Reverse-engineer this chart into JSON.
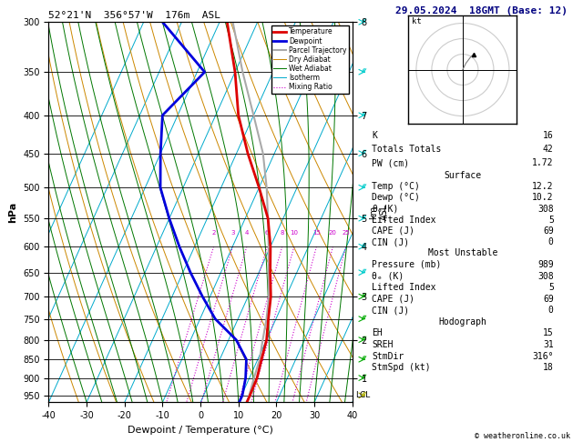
{
  "title_left": "52°21'N  356°57'W  176m  ASL",
  "title_right": "29.05.2024  18GMT (Base: 12)",
  "xlabel": "Dewpoint / Temperature (°C)",
  "ylabel_left": "hPa",
  "pressure_levels": [
    300,
    350,
    400,
    450,
    500,
    550,
    600,
    650,
    700,
    750,
    800,
    850,
    900,
    950
  ],
  "temp_range": [
    -40,
    40
  ],
  "pres_min": 300,
  "pres_max": 970,
  "skew_factor": 45.0,
  "background_color": "#ffffff",
  "temp_color": "#dd0000",
  "dewp_color": "#0000dd",
  "parcel_color": "#aaaaaa",
  "dry_adiabat_color": "#cc8800",
  "wet_adiabat_color": "#007700",
  "isotherm_color": "#00aacc",
  "mixing_ratio_color": "#cc00cc",
  "mixing_ratio_values": [
    2,
    3,
    4,
    6,
    8,
    10,
    15,
    20,
    25
  ],
  "legend_entries": [
    [
      "Temperature",
      "#dd0000",
      "solid",
      2.0
    ],
    [
      "Dewpoint",
      "#0000dd",
      "solid",
      2.0
    ],
    [
      "Parcel Trajectory",
      "#aaaaaa",
      "solid",
      1.5
    ],
    [
      "Dry Adiabat",
      "#cc8800",
      "solid",
      0.7
    ],
    [
      "Wet Adiabat",
      "#007700",
      "solid",
      0.7
    ],
    [
      "Isotherm",
      "#00aacc",
      "solid",
      0.7
    ],
    [
      "Mixing Ratio",
      "#cc00cc",
      "dotted",
      0.8
    ]
  ],
  "km_ticks": {
    "8": 300,
    "7": 400,
    "6": 450,
    "5": 550,
    "4": 600,
    "3": 700,
    "2": 800,
    "1": 900
  },
  "stats": {
    "K": 16,
    "Totals_Totals": 42,
    "PW_cm": 1.72,
    "Surface": {
      "Temp_C": 12.2,
      "Dewp_C": 10.2,
      "theta_e_K": 308,
      "Lifted_Index": 5,
      "CAPE_J": 69,
      "CIN_J": 0
    },
    "Most_Unstable": {
      "Pressure_mb": 989,
      "theta_e_K": 308,
      "Lifted_Index": 5,
      "CAPE_J": 69,
      "CIN_J": 0
    },
    "Hodograph": {
      "EH": 15,
      "SREH": 31,
      "StmDir": "316°",
      "StmSpd_kt": 18
    }
  },
  "temperature_profile": {
    "pressure": [
      300,
      350,
      400,
      450,
      500,
      550,
      600,
      650,
      700,
      750,
      800,
      850,
      900,
      950,
      970
    ],
    "temp": [
      -38,
      -30,
      -24,
      -17,
      -10,
      -4,
      0,
      3,
      6,
      8,
      10,
      11,
      12,
      12.2,
      12.2
    ]
  },
  "dewpoint_profile": {
    "pressure": [
      300,
      350,
      400,
      450,
      500,
      550,
      600,
      650,
      700,
      750,
      800,
      850,
      900,
      950,
      970
    ],
    "dewp": [
      -55,
      -38,
      -44,
      -40,
      -36,
      -30,
      -24,
      -18,
      -12,
      -6,
      2,
      7,
      9,
      10.2,
      10.2
    ]
  },
  "parcel_profile": {
    "pressure": [
      970,
      950,
      900,
      850,
      800,
      750,
      700,
      650,
      600,
      550,
      500,
      450,
      400,
      350,
      300
    ],
    "temp": [
      12.2,
      12.0,
      11.2,
      10.5,
      9.0,
      7.5,
      5.5,
      2.5,
      -0.5,
      -4.0,
      -8.0,
      -13.0,
      -20.0,
      -28.0,
      -36.5
    ]
  },
  "wind_barbs": {
    "pressures": [
      300,
      350,
      400,
      450,
      500,
      550,
      600,
      650,
      700,
      750,
      800,
      850,
      900,
      950
    ],
    "colors": [
      "#00cccc",
      "#00cccc",
      "#00cccc",
      "#00cccc",
      "#00cccc",
      "#00cccc",
      "#00cccc",
      "#00cccc",
      "#00aa00",
      "#00aa00",
      "#00aa00",
      "#00aa00",
      "#00aa00",
      "#aaaa00"
    ]
  }
}
